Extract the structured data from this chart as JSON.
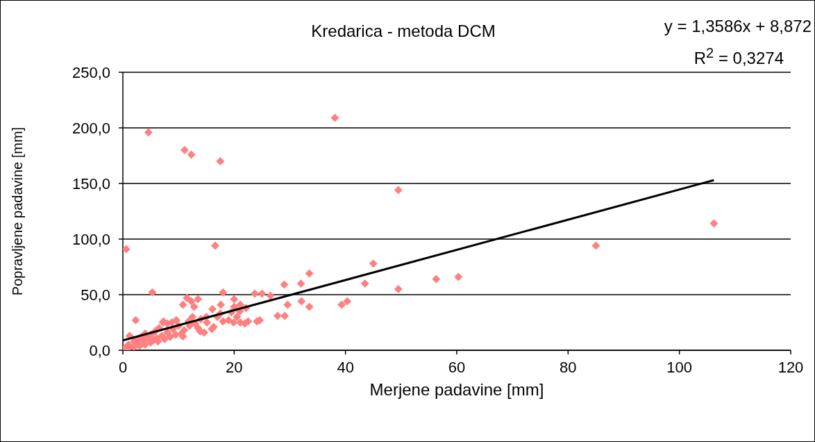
{
  "chart_data": {
    "type": "scatter",
    "title": "Kredarica - metoda DCM",
    "xlabel": "Merjene padavine [mm]",
    "ylabel": "Popravljene padavine [mm]",
    "annotations": [
      "y = 1,3586x + 8,872",
      "R$^{2}$ = 0,3274"
    ],
    "xlim": [
      0,
      120
    ],
    "xticks": [
      0,
      20,
      40,
      60,
      80,
      100,
      120
    ],
    "ylim": [
      0,
      250
    ],
    "yticks": [
      {
        "value": 0,
        "label": "0,0"
      },
      {
        "value": 50,
        "label": "50,0"
      },
      {
        "value": 100,
        "label": "100,0"
      },
      {
        "value": 150,
        "label": "150,0"
      },
      {
        "value": 200,
        "label": "200,0"
      },
      {
        "value": 250,
        "label": "250,0"
      }
    ],
    "grid": "y",
    "legend": false,
    "marker": "diamond",
    "series": [
      {
        "color": "#ff8080",
        "x": [
          0.6,
          4.6,
          11.1,
          12.3,
          17.5,
          16.6,
          5.3,
          38.1,
          49.5,
          106.2,
          85,
          60.3,
          56.3,
          49.5,
          45,
          43.5,
          40.3,
          39.3,
          33.5,
          33.5,
          32,
          32.1,
          29,
          29.6,
          29.1,
          27.8,
          26.5,
          25,
          24.6,
          24.1,
          23.7,
          22.1,
          22.5,
          21.9,
          21.1,
          21.1,
          20,
          20,
          19.9,
          18,
          17.6,
          18,
          16.1,
          16.3,
          14.6,
          15.1,
          13.9,
          13.5,
          12.8,
          12.3,
          11.5,
          10.8,
          10.8,
          11.8,
          9.6,
          8.8,
          8,
          7.3,
          2.3,
          0.3,
          1,
          1,
          1.2,
          2,
          2,
          2.5,
          2.8,
          3,
          3.3,
          3.5,
          3.8,
          4,
          4,
          4.5,
          5,
          5,
          5.5,
          5.8,
          6,
          6.3,
          6.5,
          7,
          7.2,
          7.5,
          8,
          8.5,
          9,
          9.5,
          10,
          10.5,
          11,
          12,
          12.5,
          13,
          13.5,
          14,
          15,
          16,
          17,
          17.5,
          19,
          19.5,
          20.5,
          21
        ],
        "values": [
          91,
          196,
          180,
          176,
          170,
          94,
          52,
          209,
          144,
          114,
          94,
          66,
          64,
          55,
          78,
          60,
          44,
          41,
          69,
          39,
          60,
          44,
          59,
          41,
          31,
          31,
          49,
          51,
          27,
          26,
          51,
          38,
          26,
          24,
          41,
          25,
          46,
          39,
          25,
          52,
          41,
          26,
          37,
          21,
          16,
          25,
          17,
          46,
          39,
          44,
          47,
          41,
          12.5,
          26,
          27,
          25,
          24,
          26,
          27,
          2,
          2,
          5,
          13,
          3,
          8,
          5,
          10,
          4,
          12,
          6,
          9,
          5,
          15,
          11,
          7,
          14,
          9,
          17,
          11,
          8,
          20,
          13,
          25,
          10,
          16,
          12,
          19,
          14,
          22,
          15,
          18,
          22,
          30,
          24,
          20,
          28,
          30,
          19,
          30,
          33,
          27,
          34,
          30,
          35
        ]
      },
      {
        "type": "line",
        "marker": "none",
        "color": "#000000",
        "x": [
          0,
          106.2
        ],
        "values": [
          8.9,
          153
        ]
      }
    ]
  }
}
